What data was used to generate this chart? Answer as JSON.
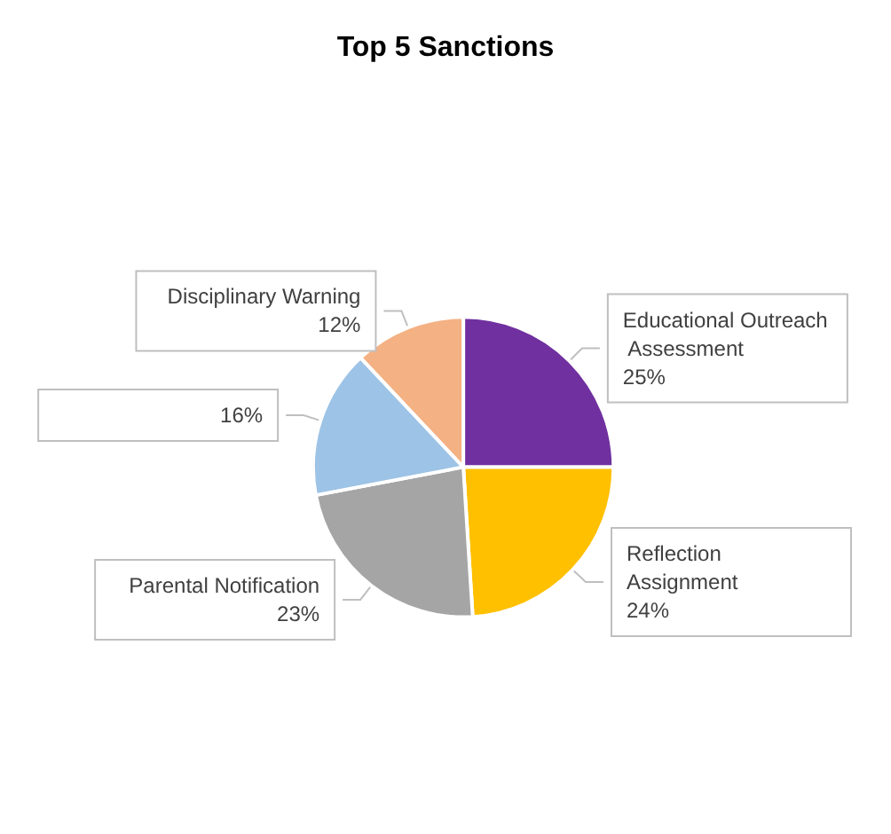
{
  "chart_data": {
    "type": "pie",
    "title": "Top 5 Sanctions",
    "categories": [
      "Educational Outreach Assessment",
      "Reflection Assignment",
      "Parental Notification",
      null,
      "Disciplinary Warning"
    ],
    "values": [
      25,
      24,
      23,
      16,
      12
    ],
    "value_labels": [
      "25%",
      "24%",
      "23%",
      "16%",
      "12%"
    ],
    "colors": [
      "#7030a0",
      "#ffc000",
      "#a5a5a5",
      "#9dc3e6",
      "#f4b183"
    ],
    "legend": false
  }
}
